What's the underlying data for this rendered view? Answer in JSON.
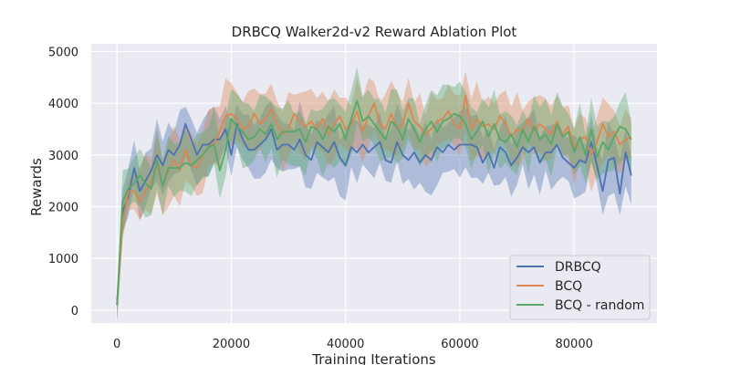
{
  "chart_data": {
    "type": "line",
    "title": "DRBCQ Walker2d-v2 Reward Ablation Plot",
    "xlabel": "Training Iterations",
    "ylabel": "Rewards",
    "xlim": [
      -4500,
      94500
    ],
    "ylim": [
      -250,
      5150
    ],
    "xticks": [
      0,
      20000,
      40000,
      60000,
      80000
    ],
    "yticks": [
      0,
      1000,
      2000,
      3000,
      4000,
      5000
    ],
    "grid": true,
    "legend_position": "lower-right",
    "x": [
      0,
      1000,
      2000,
      3000,
      4000,
      5000,
      6000,
      7000,
      8000,
      9000,
      10000,
      11000,
      12000,
      13000,
      14000,
      15000,
      16000,
      17000,
      18000,
      19000,
      20000,
      21000,
      22000,
      23000,
      24000,
      25000,
      26000,
      27000,
      28000,
      29000,
      30000,
      31000,
      32000,
      33000,
      34000,
      35000,
      36000,
      37000,
      38000,
      39000,
      40000,
      41000,
      42000,
      43000,
      44000,
      45000,
      46000,
      47000,
      48000,
      49000,
      50000,
      51000,
      52000,
      53000,
      54000,
      55000,
      56000,
      57000,
      58000,
      59000,
      60000,
      61000,
      62000,
      63000,
      64000,
      65000,
      66000,
      67000,
      68000,
      69000,
      70000,
      71000,
      72000,
      73000,
      74000,
      75000,
      76000,
      77000,
      78000,
      79000,
      80000,
      81000,
      82000,
      83000,
      84000,
      85000,
      86000,
      87000,
      88000,
      89000,
      90000
    ],
    "series": [
      {
        "name": "DRBCQ",
        "color": "#4c72b0",
        "values": [
          100,
          1900,
          2200,
          2750,
          2300,
          2500,
          2700,
          3000,
          2800,
          3100,
          3000,
          3200,
          3600,
          3300,
          3000,
          3200,
          3200,
          3300,
          3300,
          3500,
          3000,
          3600,
          3300,
          3100,
          3100,
          3200,
          3300,
          3500,
          3100,
          3200,
          3200,
          3100,
          3300,
          3000,
          2900,
          3250,
          3150,
          3050,
          3250,
          2950,
          2800,
          3150,
          3050,
          3200,
          3050,
          3150,
          3250,
          2900,
          2850,
          3250,
          3000,
          2900,
          3050,
          2850,
          3000,
          2900,
          3150,
          3050,
          3200,
          3100,
          3200,
          3200,
          3200,
          3150,
          2850,
          3050,
          2750,
          3150,
          3050,
          2800,
          2950,
          3150,
          3050,
          3150,
          2850,
          3050,
          3050,
          3200,
          2950,
          2850,
          2750,
          2900,
          2850,
          3250,
          2800,
          2300,
          2900,
          2950,
          2250,
          3050,
          2600
        ]
      },
      {
        "name": "BCQ",
        "color": "#dd8452",
        "values": [
          100,
          1700,
          2300,
          2300,
          2100,
          2300,
          2500,
          2800,
          2400,
          2700,
          2900,
          2700,
          3100,
          2800,
          2750,
          3000,
          3150,
          3250,
          3450,
          3750,
          3800,
          3700,
          3500,
          3550,
          3800,
          3600,
          3700,
          3900,
          3600,
          3400,
          3500,
          3800,
          3650,
          3550,
          3650,
          3500,
          3700,
          3400,
          3600,
          3750,
          3500,
          3600,
          3850,
          3450,
          3750,
          4000,
          3600,
          3500,
          3800,
          3500,
          3600,
          4000,
          3650,
          3550,
          3400,
          3500,
          3650,
          3700,
          3850,
          3600,
          3500,
          4150,
          3500,
          3700,
          3550,
          3600,
          3500,
          3750,
          3600,
          3350,
          3500,
          3450,
          3700,
          3450,
          3600,
          3500,
          3400,
          3650,
          3400,
          3550,
          3150,
          3300,
          3350,
          3000,
          3250,
          3600,
          3350,
          3450,
          3200,
          3300,
          3350
        ]
      },
      {
        "name": "BCQ - random",
        "color": "#55a868",
        "values": [
          100,
          2100,
          2350,
          2450,
          2600,
          2450,
          2350,
          2900,
          2400,
          2750,
          2750,
          2750,
          2850,
          2800,
          2900,
          3000,
          3150,
          3200,
          2700,
          3100,
          3700,
          3550,
          3450,
          3300,
          3350,
          3500,
          3400,
          3600,
          3300,
          3450,
          3450,
          3450,
          3500,
          3250,
          3550,
          3500,
          3300,
          3550,
          3450,
          3600,
          3300,
          3700,
          4050,
          3650,
          3750,
          3600,
          3450,
          3300,
          3650,
          3550,
          3300,
          3700,
          3500,
          3250,
          3500,
          3650,
          3450,
          3650,
          3700,
          3800,
          3750,
          3600,
          3300,
          3450,
          3650,
          3350,
          3600,
          3300,
          3250,
          3400,
          3150,
          3500,
          3250,
          3550,
          3300,
          3400,
          3200,
          3600,
          3350,
          3450,
          3050,
          3350,
          3000,
          3500,
          2950,
          3250,
          3100,
          3350,
          3550,
          3500,
          3300
        ]
      }
    ]
  }
}
